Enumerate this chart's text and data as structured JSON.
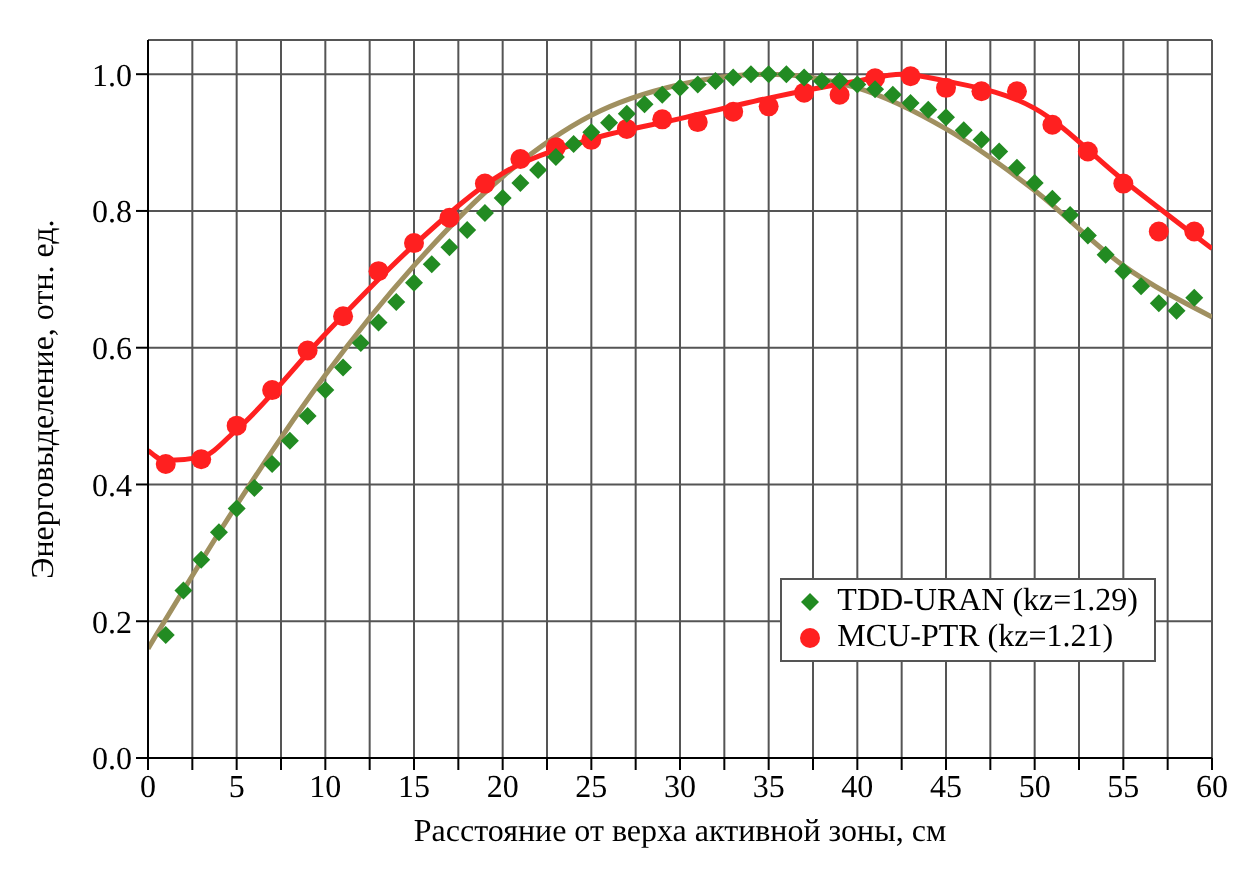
{
  "chart_data": {
    "type": "scatter",
    "xlabel": "Расстояние от верха активной зоны, см",
    "ylabel": "Энерговыделение, отн. ед.",
    "xlim": [
      0,
      60
    ],
    "ylim": [
      0,
      1.05
    ],
    "xticks": [
      0,
      {
        "value": 2.5,
        "label": null
      },
      5,
      {
        "value": 7.5,
        "label": null
      },
      10,
      {
        "value": 12.5,
        "label": null
      },
      15,
      {
        "value": 17.5,
        "label": null
      },
      20,
      {
        "value": 22.5,
        "label": null
      },
      25,
      {
        "value": 27.5,
        "label": null
      },
      30,
      {
        "value": 32.5,
        "label": null
      },
      35,
      {
        "value": 37.5,
        "label": null
      },
      40,
      {
        "value": 42.5,
        "label": null
      },
      45,
      {
        "value": 47.5,
        "label": null
      },
      50,
      {
        "value": 52.5,
        "label": null
      },
      55,
      {
        "value": 57.5,
        "label": null
      },
      60
    ],
    "yticks": [
      {
        "value": 0,
        "label": "0.0"
      },
      {
        "value": 0.2,
        "label": "0.2"
      },
      {
        "value": 0.4,
        "label": "0.4"
      },
      {
        "value": 0.6,
        "label": "0.6"
      },
      {
        "value": 0.8,
        "label": "0.8"
      },
      {
        "value": 1,
        "label": "1.0"
      }
    ],
    "grid": true,
    "legend": "bottom right",
    "series": [
      {
        "type": "line",
        "color": "#a09060",
        "marker": "none",
        "line_style": "solid",
        "x": [
          0,
          5,
          10,
          15,
          20,
          25,
          30,
          35,
          40,
          45,
          50,
          55,
          60
        ],
        "values": [
          0.16,
          0.37,
          0.56,
          0.72,
          0.85,
          0.94,
          0.985,
          1.0,
          0.98,
          0.92,
          0.83,
          0.72,
          0.645
        ]
      },
      {
        "type": "line",
        "color": "#ff2020",
        "marker": "none",
        "line_style": "solid",
        "x": [
          0,
          1,
          3,
          5,
          10,
          15,
          20,
          25,
          30,
          35,
          40,
          42.5,
          45,
          50,
          55,
          60
        ],
        "values": [
          0.45,
          0.435,
          0.44,
          0.48,
          0.62,
          0.75,
          0.855,
          0.905,
          0.935,
          0.965,
          0.99,
          1.0,
          0.99,
          0.95,
          0.845,
          0.745
        ]
      },
      {
        "type": "scatter",
        "name": "TDD-URAN (kz=1.29)",
        "color": "#228b22",
        "marker": "diamond",
        "x": [
          1,
          2,
          3,
          4,
          5,
          6,
          7,
          8,
          9,
          10,
          11,
          12,
          13,
          14,
          15,
          16,
          17,
          18,
          19,
          20,
          21,
          22,
          23,
          24,
          25,
          26,
          27,
          28,
          29,
          30,
          31,
          32,
          33,
          34,
          35,
          36,
          37,
          38,
          39,
          40,
          41,
          42,
          43,
          44,
          45,
          46,
          47,
          48,
          49,
          50,
          51,
          52,
          53,
          54,
          55,
          56,
          57,
          58,
          59
        ],
        "values": [
          0.18,
          0.245,
          0.29,
          0.33,
          0.365,
          0.395,
          0.43,
          0.464,
          0.5,
          0.538,
          0.571,
          0.607,
          0.637,
          0.667,
          0.695,
          0.722,
          0.747,
          0.772,
          0.797,
          0.819,
          0.841,
          0.86,
          0.879,
          0.898,
          0.915,
          0.929,
          0.942,
          0.956,
          0.97,
          0.98,
          0.985,
          0.99,
          0.995,
          1.0,
          1.0,
          1.0,
          0.995,
          0.99,
          0.99,
          0.985,
          0.978,
          0.97,
          0.958,
          0.948,
          0.937,
          0.918,
          0.904,
          0.887,
          0.863,
          0.841,
          0.818,
          0.794,
          0.764,
          0.736,
          0.712,
          0.69,
          0.665,
          0.654,
          0.673
        ]
      },
      {
        "type": "scatter",
        "name": "MCU-PTR (kz=1.21)",
        "color": "#ff2020",
        "marker": "circle",
        "x": [
          1,
          3,
          5,
          7,
          9,
          11,
          13,
          15,
          17,
          19,
          21,
          23,
          25,
          27,
          29,
          31,
          33,
          35,
          37,
          39,
          41,
          43,
          45,
          47,
          49,
          51,
          53,
          55,
          57,
          59
        ],
        "values": [
          0.43,
          0.437,
          0.486,
          0.538,
          0.596,
          0.646,
          0.712,
          0.753,
          0.79,
          0.84,
          0.876,
          0.893,
          0.904,
          0.92,
          0.934,
          0.93,
          0.945,
          0.953,
          0.973,
          0.97,
          0.994,
          0.997,
          0.98,
          0.975,
          0.975,
          0.926,
          0.887,
          0.84,
          0.77,
          0.77
        ]
      }
    ]
  }
}
